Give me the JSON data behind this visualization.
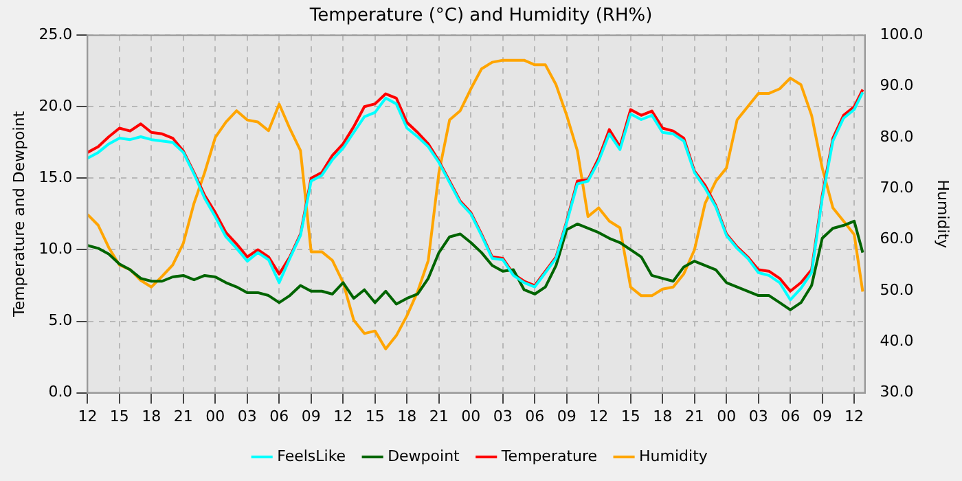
{
  "chart_data": {
    "type": "line",
    "title": "Temperature (°C) and Humidity (RH%)",
    "ylabel": "Temperature and Dewpoint",
    "y2label": "Humidity",
    "x": [
      12,
      13,
      14,
      15,
      16,
      17,
      18,
      19,
      20,
      21,
      22,
      23,
      24,
      25,
      26,
      27,
      28,
      29,
      30,
      31,
      32,
      33,
      34,
      35,
      36,
      37,
      38,
      39,
      40,
      41,
      42,
      43,
      44,
      45,
      46,
      47,
      48,
      49,
      50,
      51,
      52,
      53,
      54,
      55,
      56,
      57,
      58,
      59,
      60,
      61,
      62,
      63,
      64,
      65,
      66,
      67,
      68,
      69,
      70,
      71,
      72,
      73,
      74,
      75,
      76,
      77,
      78,
      79,
      80,
      81,
      82,
      83,
      84,
      84.8
    ],
    "xlim": [
      12,
      85
    ],
    "xticks": [
      {
        "value": 12,
        "label": "12"
      },
      {
        "value": 15,
        "label": "15"
      },
      {
        "value": 18,
        "label": "18"
      },
      {
        "value": 21,
        "label": "21"
      },
      {
        "value": 24,
        "label": "00"
      },
      {
        "value": 27,
        "label": "03"
      },
      {
        "value": 30,
        "label": "06"
      },
      {
        "value": 33,
        "label": "09"
      },
      {
        "value": 36,
        "label": "12"
      },
      {
        "value": 39,
        "label": "15"
      },
      {
        "value": 42,
        "label": "18"
      },
      {
        "value": 45,
        "label": "21"
      },
      {
        "value": 48,
        "label": "00"
      },
      {
        "value": 51,
        "label": "03"
      },
      {
        "value": 54,
        "label": "06"
      },
      {
        "value": 57,
        "label": "09"
      },
      {
        "value": 60,
        "label": "12"
      },
      {
        "value": 63,
        "label": "15"
      },
      {
        "value": 66,
        "label": "18"
      },
      {
        "value": 69,
        "label": "21"
      },
      {
        "value": 72,
        "label": "00"
      },
      {
        "value": 75,
        "label": "03"
      },
      {
        "value": 78,
        "label": "06"
      },
      {
        "value": 81,
        "label": "09"
      },
      {
        "value": 84,
        "label": "12"
      }
    ],
    "ylim": [
      0,
      25
    ],
    "yticks": [
      {
        "value": 0,
        "label": "0.0"
      },
      {
        "value": 5,
        "label": "5.0"
      },
      {
        "value": 10,
        "label": "10.0"
      },
      {
        "value": 15,
        "label": "15.0"
      },
      {
        "value": 20,
        "label": "20.0"
      },
      {
        "value": 25,
        "label": "25.0"
      }
    ],
    "y2lim": [
      30,
      100
    ],
    "y2ticks": [
      {
        "value": 30,
        "label": "30.0"
      },
      {
        "value": 40,
        "label": "40.0"
      },
      {
        "value": 50,
        "label": "50.0"
      },
      {
        "value": 60,
        "label": "60.0"
      },
      {
        "value": 70,
        "label": "70.0"
      },
      {
        "value": 80,
        "label": "80.0"
      },
      {
        "value": 90,
        "label": "90.0"
      },
      {
        "value": 100,
        "label": "100.0"
      }
    ],
    "grid": true,
    "legend": "bottom",
    "marker": "none",
    "line_style": "solid",
    "series": [
      {
        "name": "FeelsLike",
        "color": "#00ffff",
        "values": [
          16.4,
          16.8,
          17.4,
          17.8,
          17.7,
          17.9,
          17.7,
          17.6,
          17.5,
          16.8,
          15.3,
          13.6,
          12.3,
          10.9,
          10.1,
          9.2,
          9.8,
          9.3,
          7.7,
          9.4,
          11.0,
          14.8,
          15.2,
          16.3,
          17.1,
          18.2,
          19.3,
          19.6,
          20.6,
          20.2,
          18.5,
          17.9,
          17.2,
          16.1,
          14.7,
          13.3,
          12.5,
          11.0,
          9.4,
          9.3,
          8.2,
          7.7,
          7.4,
          8.4,
          9.4,
          11.9,
          14.6,
          14.8,
          16.2,
          18.1,
          17.0,
          19.5,
          19.1,
          19.4,
          18.2,
          18.1,
          17.6,
          15.4,
          14.3,
          13.0,
          11.0,
          10.1,
          9.4,
          8.4,
          8.2,
          7.7,
          6.5,
          7.3,
          8.4,
          13.6,
          17.6,
          19.2,
          19.8,
          21.0
        ]
      },
      {
        "name": "Dewpoint",
        "color": "#006400",
        "values": [
          10.3,
          10.1,
          9.7,
          9.0,
          8.6,
          8.0,
          7.8,
          7.8,
          8.1,
          8.2,
          7.9,
          8.2,
          8.1,
          7.7,
          7.4,
          7.0,
          7.0,
          6.8,
          6.3,
          6.8,
          7.5,
          7.1,
          7.1,
          6.9,
          7.7,
          6.6,
          7.2,
          6.3,
          7.1,
          6.2,
          6.6,
          6.9,
          8.0,
          9.8,
          10.9,
          11.1,
          10.5,
          9.8,
          8.9,
          8.5,
          8.6,
          7.2,
          6.9,
          7.4,
          8.9,
          11.4,
          11.8,
          11.5,
          11.2,
          10.8,
          10.5,
          10.0,
          9.5,
          8.2,
          8.0,
          7.8,
          8.8,
          9.2,
          8.9,
          8.6,
          7.7,
          7.4,
          7.1,
          6.8,
          6.8,
          6.3,
          5.8,
          6.3,
          7.5,
          10.8,
          11.5,
          11.7,
          12.0,
          9.8
        ]
      },
      {
        "name": "Temperature",
        "color": "#ff0000",
        "values": [
          16.8,
          17.2,
          17.9,
          18.5,
          18.3,
          18.8,
          18.2,
          18.1,
          17.8,
          16.9,
          15.4,
          13.8,
          12.6,
          11.2,
          10.4,
          9.5,
          10.0,
          9.5,
          8.3,
          9.5,
          11.1,
          15.0,
          15.4,
          16.6,
          17.4,
          18.6,
          20.0,
          20.2,
          20.9,
          20.6,
          18.9,
          18.2,
          17.4,
          16.2,
          14.8,
          13.4,
          12.6,
          11.1,
          9.5,
          9.4,
          8.3,
          7.8,
          7.5,
          8.5,
          9.5,
          12.0,
          14.8,
          14.9,
          16.4,
          18.4,
          17.2,
          19.8,
          19.4,
          19.7,
          18.5,
          18.3,
          17.8,
          15.5,
          14.5,
          13.1,
          11.1,
          10.2,
          9.5,
          8.6,
          8.5,
          8.0,
          7.1,
          7.7,
          8.6,
          13.8,
          17.8,
          19.4,
          20.0,
          21.2
        ]
      },
      {
        "name": "Humidity",
        "color": "#ffa500",
        "axis": "y2",
        "values": [
          64.9,
          62.8,
          58.4,
          55.0,
          54.1,
          52.0,
          50.7,
          52.8,
          55.0,
          59.3,
          67.1,
          73.1,
          80.0,
          83.0,
          85.2,
          83.4,
          83.0,
          81.3,
          86.5,
          81.7,
          77.4,
          57.6,
          57.6,
          55.9,
          51.6,
          44.2,
          41.6,
          42.1,
          38.6,
          41.2,
          45.1,
          49.8,
          55.9,
          73.1,
          83.4,
          85.2,
          89.5,
          93.4,
          94.7,
          95.1,
          95.1,
          95.1,
          94.2,
          94.2,
          90.3,
          84.3,
          77.4,
          64.5,
          66.2,
          63.6,
          62.3,
          50.7,
          49.0,
          49.0,
          50.3,
          50.7,
          53.3,
          58.0,
          67.1,
          71.4,
          74.0,
          83.4,
          86.0,
          88.6,
          88.6,
          89.5,
          91.6,
          90.3,
          84.3,
          74.0,
          66.2,
          63.6,
          61.0,
          49.8
        ]
      }
    ]
  }
}
